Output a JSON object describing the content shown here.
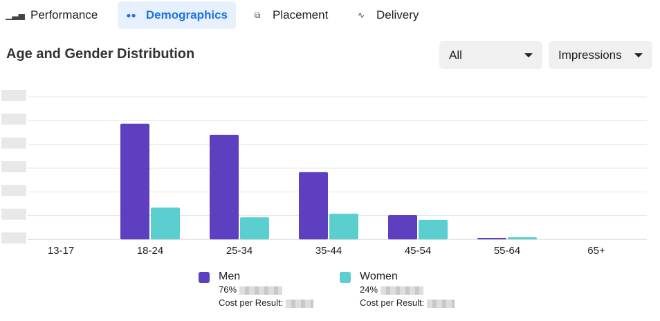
{
  "tabs": [
    {
      "label": "Performance",
      "icon": "bar-chart-icon"
    },
    {
      "label": "Demographics",
      "icon": "people-icon",
      "active": true
    },
    {
      "label": "Placement",
      "icon": "placement-icon"
    },
    {
      "label": "Delivery",
      "icon": "delivery-icon"
    }
  ],
  "title": "Age and Gender Distribution",
  "filters": {
    "audience": "All",
    "metric": "Impressions"
  },
  "legend": [
    {
      "name": "Men",
      "pct": "76%",
      "cost_label": "Cost per Result:",
      "color": "#5d3fc0"
    },
    {
      "name": "Women",
      "pct": "24%",
      "cost_label": "Cost per Result:",
      "color": "#5bcfcf"
    }
  ],
  "chart_data": {
    "type": "bar",
    "title": "Age and Gender Distribution",
    "categories": [
      "13-17",
      "18-24",
      "25-34",
      "35-44",
      "45-54",
      "55-64",
      "65+"
    ],
    "series": [
      {
        "name": "Men",
        "color": "#5d3fc0",
        "values": [
          0,
          4.87,
          4.4,
          2.83,
          1.02,
          0.06,
          0
        ]
      },
      {
        "name": "Women",
        "color": "#5bcfcf",
        "values": [
          0,
          1.34,
          0.93,
          1.08,
          0.82,
          0.09,
          0
        ]
      }
    ],
    "ylim": [
      0,
      6
    ],
    "ylabel": "",
    "xlabel": "",
    "grid": true,
    "legend": "bottom",
    "note": "y tick labels obscured; values in gridline units"
  }
}
